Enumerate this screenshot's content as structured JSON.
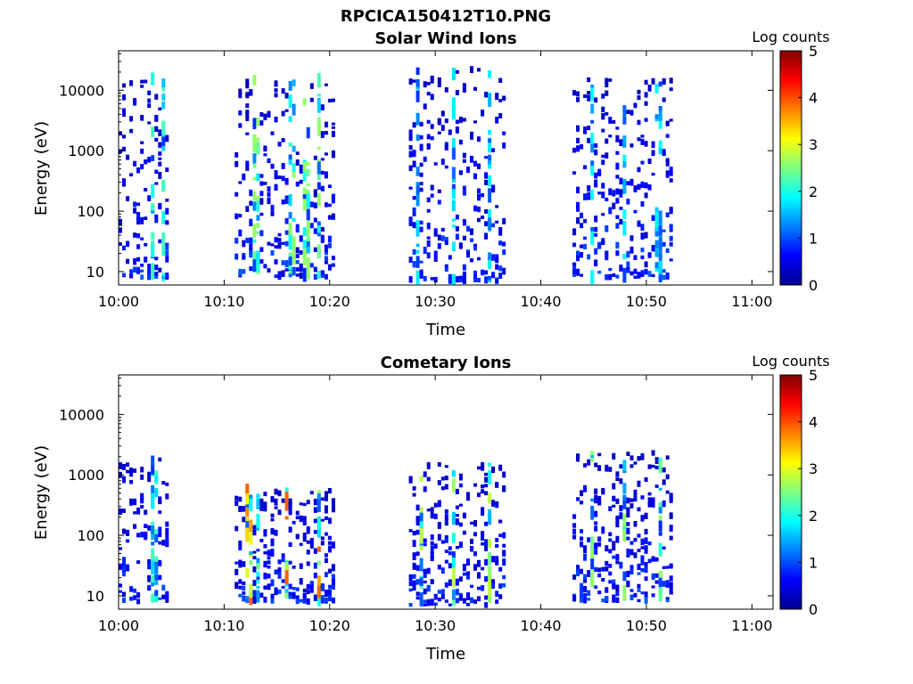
{
  "figure_title": "RPCICA150412T10.PNG",
  "chart_data": [
    {
      "type": "heatmap",
      "title": "Solar Wind Ions",
      "xlabel": "Time",
      "ylabel": "Energy (eV)",
      "x_unit": "minutes after 10:00",
      "xlim": [
        0,
        62
      ],
      "ylim": [
        6,
        45000
      ],
      "y_scale": "log",
      "x_ticks": [
        0,
        10,
        20,
        30,
        40,
        50,
        60
      ],
      "x_tick_labels": [
        "10:00",
        "10:10",
        "10:20",
        "10:30",
        "10:40",
        "10:50",
        "11:00"
      ],
      "y_ticks": [
        10,
        100,
        1000,
        10000
      ],
      "y_tick_labels": [
        "10",
        "100",
        "1000",
        "10000"
      ],
      "colorbar": {
        "label": "Log counts",
        "min": 0,
        "max": 5,
        "ticks": [
          "0",
          "1",
          "2",
          "3",
          "4",
          "5"
        ]
      },
      "bursts": [
        {
          "t0": 0,
          "t1": 4.5,
          "emin": 8,
          "emax": 17000,
          "peak_log_counts": 2.2,
          "strong_bands": [
            3,
            4.2
          ]
        },
        {
          "t0": 11,
          "t1": 20.5,
          "emin": 8,
          "emax": 15000,
          "peak_log_counts": 2.6,
          "strong_bands": [
            12.8,
            13.1,
            16.3,
            17.6,
            18.8
          ]
        },
        {
          "t0": 27.5,
          "t1": 36.5,
          "emin": 7,
          "emax": 22000,
          "peak_log_counts": 1.8,
          "strong_bands": [
            28.2,
            31.5,
            35
          ]
        },
        {
          "t0": 43,
          "t1": 52.5,
          "emin": 8,
          "emax": 15000,
          "peak_log_counts": 1.9,
          "strong_bands": [
            44.8,
            47.8,
            51
          ]
        }
      ]
    },
    {
      "type": "heatmap",
      "title": "Cometary Ions",
      "xlabel": "Time",
      "ylabel": "Energy (eV)",
      "x_unit": "minutes after 10:00",
      "xlim": [
        0,
        62
      ],
      "ylim": [
        6,
        45000
      ],
      "y_scale": "log",
      "x_ticks": [
        0,
        10,
        20,
        30,
        40,
        50,
        60
      ],
      "x_tick_labels": [
        "10:00",
        "10:10",
        "10:20",
        "10:30",
        "10:40",
        "10:50",
        "11:00"
      ],
      "y_ticks": [
        10,
        100,
        1000,
        10000
      ],
      "y_tick_labels": [
        "10",
        "100",
        "1000",
        "10000"
      ],
      "colorbar": {
        "label": "Log counts",
        "min": 0,
        "max": 5,
        "ticks": [
          "0",
          "1",
          "2",
          "3",
          "4",
          "5"
        ]
      },
      "bursts": [
        {
          "t0": 0,
          "t1": 4.5,
          "emin": 8,
          "emax": 2000,
          "peak_log_counts": 2.2,
          "strong_bands": [
            3,
            3.5
          ]
        },
        {
          "t0": 11,
          "t1": 20.5,
          "emin": 8,
          "emax": 550,
          "peak_log_counts": 3.9,
          "strong_bands": [
            12.2,
            13,
            15.8,
            18.8
          ]
        },
        {
          "t0": 27.5,
          "t1": 36.5,
          "emin": 7,
          "emax": 1500,
          "peak_log_counts": 2.8,
          "strong_bands": [
            28.5,
            31.5,
            35
          ]
        },
        {
          "t0": 43,
          "t1": 52.5,
          "emin": 8,
          "emax": 2400,
          "peak_log_counts": 2.6,
          "strong_bands": [
            44.8,
            47.8,
            51.2
          ]
        }
      ]
    }
  ]
}
